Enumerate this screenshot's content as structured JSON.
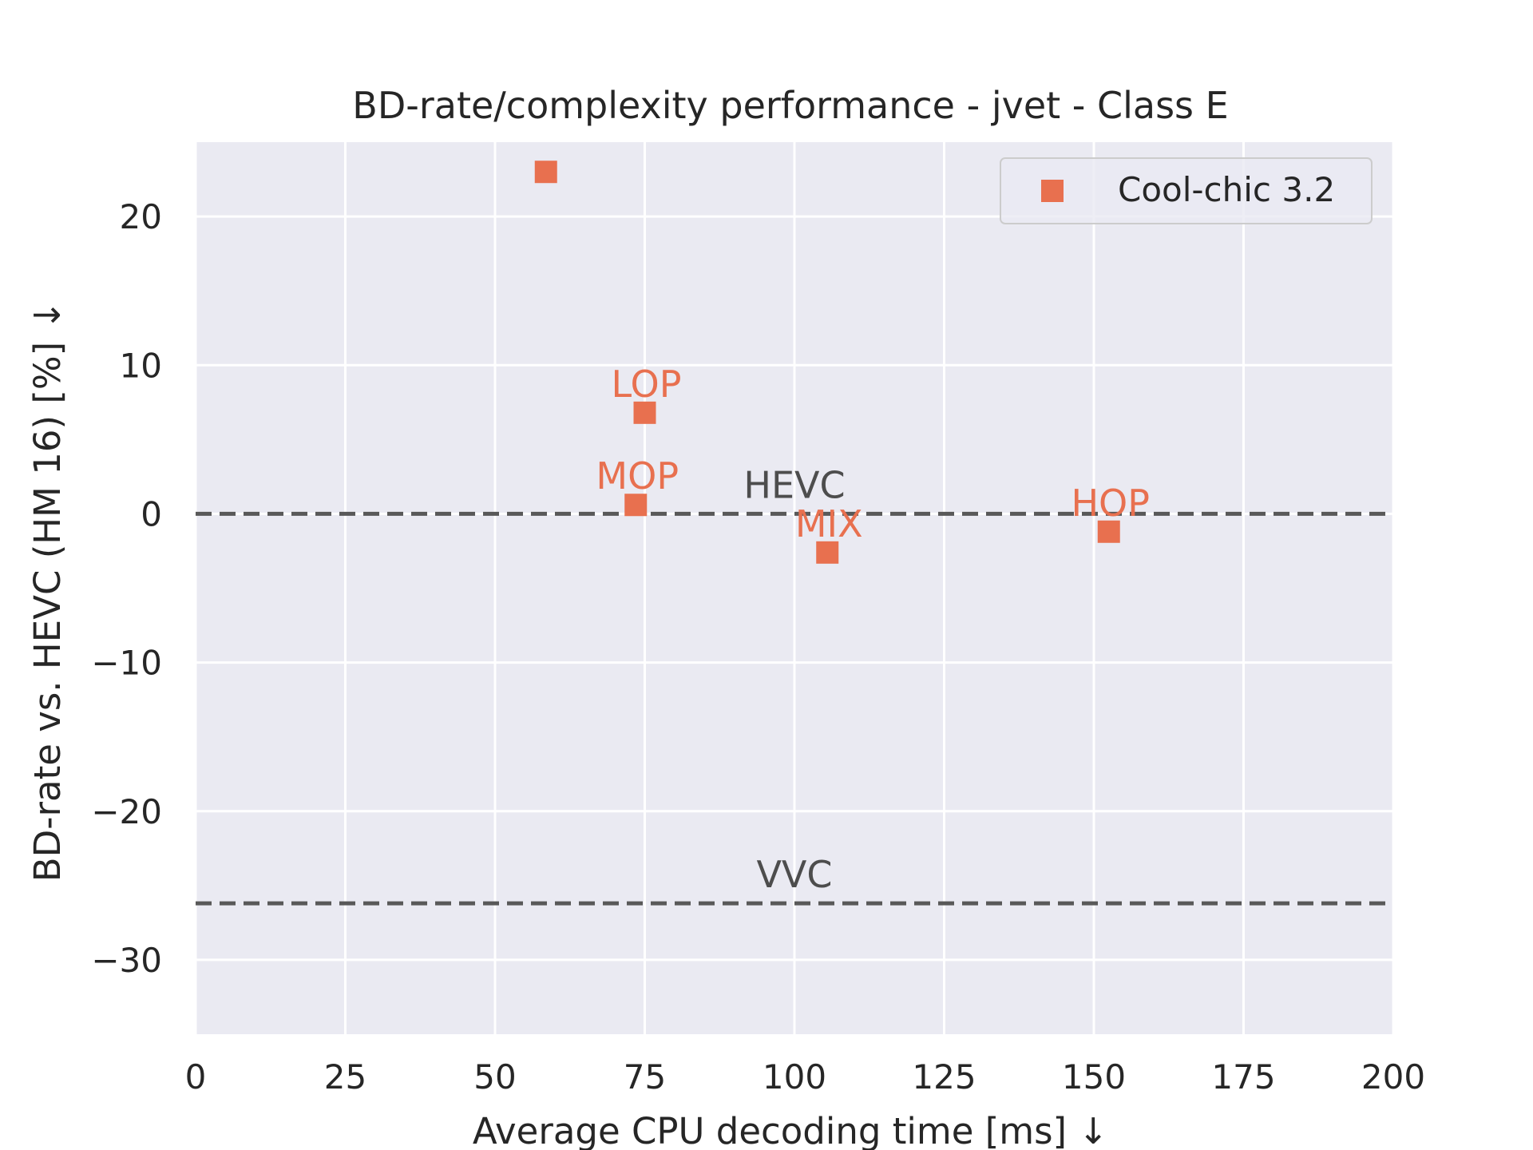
{
  "chart_data": {
    "type": "scatter",
    "title": "BD-rate/complexity performance - jvet - Class E",
    "xlabel": "Average CPU decoding time [ms] ↓",
    "ylabel": "BD-rate vs. HEVC (HM 16) [%] ↓",
    "xlim": [
      0,
      200
    ],
    "ylim": [
      -35,
      25
    ],
    "x_ticks": [
      0,
      25,
      50,
      75,
      100,
      125,
      150,
      175,
      200
    ],
    "y_ticks": [
      -30,
      -20,
      -10,
      0,
      10,
      20
    ],
    "x_tick_labels": [
      "0",
      "25",
      "50",
      "75",
      "100",
      "125",
      "150",
      "175",
      "200"
    ],
    "y_tick_labels": [
      "−30",
      "−20",
      "−10",
      "0",
      "10",
      "20"
    ],
    "grid": true,
    "legend_position": "top-right",
    "series": [
      {
        "name": "Cool-chic 3.2",
        "color": "#e8704f",
        "marker": "square",
        "points": [
          {
            "x": 58.5,
            "y": 23.0,
            "label": ""
          },
          {
            "x": 75.0,
            "y": 6.8,
            "label": "LOP"
          },
          {
            "x": 73.5,
            "y": 0.6,
            "label": "MOP"
          },
          {
            "x": 105.5,
            "y": -2.6,
            "label": "MIX"
          },
          {
            "x": 152.5,
            "y": -1.2,
            "label": "HOP"
          }
        ]
      }
    ],
    "reference_lines": [
      {
        "label": "HEVC",
        "y": 0,
        "color": "#595959",
        "style": "dashed"
      },
      {
        "label": "VVC",
        "y": -26.2,
        "color": "#595959",
        "style": "dashed"
      }
    ],
    "colors": {
      "plot_background": "#eaeaf2",
      "grid": "#ffffff"
    }
  }
}
